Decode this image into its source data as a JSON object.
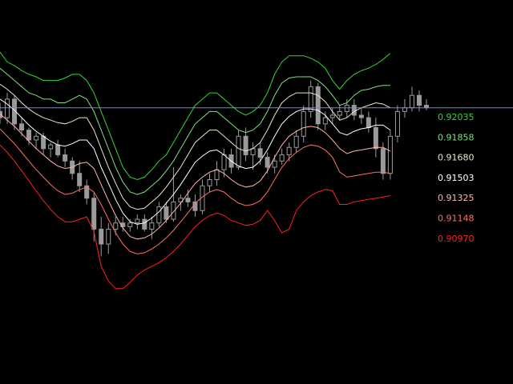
{
  "chart_data": {
    "type": "line",
    "background": "#000000",
    "candle_color": "#9a9a9a",
    "price_line": {
      "value": 0.9168,
      "color": "#8090a8"
    },
    "ylim": [
      0.8945,
      0.9255
    ],
    "x_count": 60,
    "band_levels": [
      {
        "label": "0.92035",
        "color": "#33d633"
      },
      {
        "label": "0.91858",
        "color": "#80e080"
      },
      {
        "label": "0.91680",
        "color": "#e8e8c8"
      },
      {
        "label": "0.91503",
        "color": "#ffffff"
      },
      {
        "label": "0.91325",
        "color": "#ffb8a8"
      },
      {
        "label": "0.91148",
        "color": "#ff7060"
      },
      {
        "label": "0.90970",
        "color": "#ff2020"
      }
    ],
    "series": [
      {
        "color": "#33d633",
        "values": [
          0.9213,
          0.9205,
          0.9202,
          0.9198,
          0.9195,
          0.9193,
          0.919,
          0.919,
          0.919,
          0.9192,
          0.9195,
          0.9195,
          0.919,
          0.918,
          0.9165,
          0.915,
          0.9135,
          0.912,
          0.9112,
          0.911,
          0.9112,
          0.9118,
          0.9125,
          0.913,
          0.914,
          0.915,
          0.916,
          0.917,
          0.9175,
          0.918,
          0.918,
          0.9175,
          0.917,
          0.9165,
          0.9162,
          0.9165,
          0.917,
          0.918,
          0.9195,
          0.9205,
          0.921,
          0.921,
          0.921,
          0.9208,
          0.9205,
          0.92,
          0.919,
          0.9183,
          0.919,
          0.9195,
          0.9198,
          0.92,
          0.9203,
          0.9207,
          0.9212
        ]
      },
      {
        "color": "#80e080",
        "values": [
          0.92,
          0.9195,
          0.919,
          0.9185,
          0.918,
          0.9178,
          0.9175,
          0.9175,
          0.9172,
          0.9172,
          0.9175,
          0.9178,
          0.9175,
          0.9165,
          0.915,
          0.9135,
          0.912,
          0.9108,
          0.91,
          0.9098,
          0.91,
          0.9105,
          0.911,
          0.9117,
          0.9125,
          0.9135,
          0.9145,
          0.9155,
          0.916,
          0.9165,
          0.9165,
          0.916,
          0.9155,
          0.915,
          0.9148,
          0.915,
          0.9155,
          0.9165,
          0.9178,
          0.9188,
          0.9192,
          0.9193,
          0.9193,
          0.9193,
          0.919,
          0.9185,
          0.9178,
          0.917,
          0.9172,
          0.9178,
          0.9182,
          0.9183,
          0.9185,
          0.9186,
          0.9186
        ]
      },
      {
        "color": "#e8e8c8",
        "values": [
          0.9187,
          0.9183,
          0.9178,
          0.9172,
          0.9167,
          0.9163,
          0.916,
          0.9158,
          0.9156,
          0.9155,
          0.9157,
          0.916,
          0.916,
          0.915,
          0.9135,
          0.912,
          0.9107,
          0.9095,
          0.9088,
          0.9086,
          0.9087,
          0.9092,
          0.9097,
          0.9104,
          0.9112,
          0.912,
          0.913,
          0.914,
          0.9145,
          0.915,
          0.915,
          0.9145,
          0.914,
          0.9135,
          0.9133,
          0.9135,
          0.914,
          0.915,
          0.9162,
          0.9172,
          0.9177,
          0.918,
          0.918,
          0.918,
          0.9178,
          0.9173,
          0.9165,
          0.9158,
          0.916,
          0.9165,
          0.9168,
          0.917,
          0.9172,
          0.9171,
          0.9168
        ]
      },
      {
        "color": "#ffffff",
        "values": [
          0.9175,
          0.9171,
          0.9166,
          0.916,
          0.9154,
          0.9149,
          0.9145,
          0.9141,
          0.9138,
          0.9137,
          0.9139,
          0.9142,
          0.9142,
          0.9135,
          0.912,
          0.9107,
          0.9094,
          0.9083,
          0.9076,
          0.9074,
          0.9075,
          0.9079,
          0.9084,
          0.9091,
          0.9098,
          0.9106,
          0.9115,
          0.9124,
          0.9129,
          0.9133,
          0.9134,
          0.913,
          0.9125,
          0.9121,
          0.9119,
          0.912,
          0.9125,
          0.9134,
          0.9145,
          0.9155,
          0.9161,
          0.9165,
          0.9167,
          0.9167,
          0.9166,
          0.9162,
          0.9155,
          0.9148,
          0.9146,
          0.9149,
          0.9151,
          0.9152,
          0.9154,
          0.9154,
          0.915
        ]
      },
      {
        "color": "#ffb8a8",
        "values": [
          0.9163,
          0.9158,
          0.9153,
          0.9147,
          0.9141,
          0.9135,
          0.913,
          0.9125,
          0.9121,
          0.9119,
          0.912,
          0.9123,
          0.9124,
          0.9119,
          0.9106,
          0.9093,
          0.9081,
          0.9071,
          0.9064,
          0.9062,
          0.9063,
          0.9066,
          0.9071,
          0.9077,
          0.9084,
          0.9091,
          0.9099,
          0.9107,
          0.9112,
          0.9116,
          0.9118,
          0.9115,
          0.911,
          0.9106,
          0.9104,
          0.9105,
          0.9109,
          0.9117,
          0.9128,
          0.9138,
          0.9145,
          0.9149,
          0.9152,
          0.9153,
          0.9152,
          0.9148,
          0.9142,
          0.9135,
          0.9131,
          0.9133,
          0.9134,
          0.9135,
          0.9136,
          0.9136,
          0.9133
        ]
      },
      {
        "color": "#ff7060",
        "values": [
          0.9151,
          0.9145,
          0.9139,
          0.9132,
          0.9125,
          0.9118,
          0.9112,
          0.9106,
          0.9101,
          0.9098,
          0.9099,
          0.9102,
          0.9104,
          0.91,
          0.909,
          0.9078,
          0.9067,
          0.9058,
          0.9052,
          0.905,
          0.9051,
          0.9054,
          0.9058,
          0.9063,
          0.9069,
          0.9076,
          0.9083,
          0.9091,
          0.9096,
          0.91,
          0.9102,
          0.91,
          0.9095,
          0.9091,
          0.9089,
          0.909,
          0.9093,
          0.91,
          0.911,
          0.912,
          0.9127,
          0.9132,
          0.9136,
          0.9138,
          0.9137,
          0.9134,
          0.9128,
          0.9116,
          0.9112,
          0.9113,
          0.9114,
          0.9115,
          0.9116,
          0.9116,
          0.9115
        ]
      },
      {
        "color": "#ff2020",
        "values": [
          0.9138,
          0.9132,
          0.9125,
          0.9117,
          0.9109,
          0.9101,
          0.9093,
          0.9086,
          0.908,
          0.9076,
          0.9076,
          0.9078,
          0.908,
          0.9068,
          0.904,
          0.9028,
          0.9022,
          0.9022,
          0.9027,
          0.9033,
          0.9037,
          0.904,
          0.9043,
          0.9047,
          0.9052,
          0.9058,
          0.9065,
          0.9072,
          0.9077,
          0.9081,
          0.9083,
          0.9081,
          0.9077,
          0.9075,
          0.9073,
          0.9074,
          0.9077,
          0.9085,
          0.9077,
          0.9067,
          0.907,
          0.9085,
          0.9092,
          0.9097,
          0.91,
          0.9102,
          0.9101,
          0.909,
          0.909,
          0.9092,
          0.9093,
          0.9094,
          0.9095,
          0.9096,
          0.9097
        ]
      }
    ],
    "candles": [
      [
        0.9165,
        0.9172,
        0.9155,
        0.916
      ],
      [
        0.916,
        0.918,
        0.9155,
        0.9175
      ],
      [
        0.9175,
        0.9178,
        0.915,
        0.9155
      ],
      [
        0.9155,
        0.916,
        0.9145,
        0.915
      ],
      [
        0.915,
        0.9152,
        0.9138,
        0.9142
      ],
      [
        0.9142,
        0.9148,
        0.9135,
        0.9145
      ],
      [
        0.9145,
        0.9148,
        0.913,
        0.9135
      ],
      [
        0.9135,
        0.914,
        0.9128,
        0.9138
      ],
      [
        0.9138,
        0.9142,
        0.9128,
        0.913
      ],
      [
        0.913,
        0.9135,
        0.912,
        0.9125
      ],
      [
        0.9125,
        0.9128,
        0.911,
        0.9115
      ],
      [
        0.9115,
        0.9125,
        0.91,
        0.9105
      ],
      [
        0.9105,
        0.911,
        0.909,
        0.9095
      ],
      [
        0.9095,
        0.91,
        0.906,
        0.907
      ],
      [
        0.907,
        0.908,
        0.9048,
        0.9058
      ],
      [
        0.9058,
        0.9075,
        0.905,
        0.907
      ],
      [
        0.907,
        0.908,
        0.9065,
        0.9075
      ],
      [
        0.9075,
        0.908,
        0.9068,
        0.9072
      ],
      [
        0.9072,
        0.9078,
        0.9068,
        0.9075
      ],
      [
        0.9075,
        0.9082,
        0.907,
        0.9078
      ],
      [
        0.9078,
        0.9082,
        0.9068,
        0.907
      ],
      [
        0.907,
        0.908,
        0.9062,
        0.9075
      ],
      [
        0.9075,
        0.9092,
        0.9072,
        0.9088
      ],
      [
        0.9088,
        0.9092,
        0.9075,
        0.9078
      ],
      [
        0.9078,
        0.912,
        0.9076,
        0.9092
      ],
      [
        0.9092,
        0.9098,
        0.9085,
        0.9095
      ],
      [
        0.9095,
        0.9102,
        0.9088,
        0.9092
      ],
      [
        0.9092,
        0.9098,
        0.908,
        0.9085
      ],
      [
        0.9085,
        0.911,
        0.9082,
        0.9105
      ],
      [
        0.9105,
        0.9115,
        0.91,
        0.911
      ],
      [
        0.911,
        0.9125,
        0.9105,
        0.9118
      ],
      [
        0.9118,
        0.9135,
        0.9112,
        0.913
      ],
      [
        0.913,
        0.9135,
        0.9115,
        0.912
      ],
      [
        0.912,
        0.915,
        0.9118,
        0.9145
      ],
      [
        0.9145,
        0.9152,
        0.9125,
        0.913
      ],
      [
        0.913,
        0.914,
        0.9118,
        0.9135
      ],
      [
        0.9135,
        0.914,
        0.9122,
        0.9128
      ],
      [
        0.9128,
        0.9132,
        0.9115,
        0.912
      ],
      [
        0.912,
        0.913,
        0.9115,
        0.9125
      ],
      [
        0.9125,
        0.9135,
        0.9122,
        0.913
      ],
      [
        0.913,
        0.914,
        0.9125,
        0.9136
      ],
      [
        0.9136,
        0.915,
        0.9132,
        0.9145
      ],
      [
        0.9145,
        0.917,
        0.914,
        0.9165
      ],
      [
        0.9165,
        0.919,
        0.916,
        0.9185
      ],
      [
        0.9185,
        0.9188,
        0.915,
        0.9155
      ],
      [
        0.9155,
        0.9165,
        0.915,
        0.916
      ],
      [
        0.916,
        0.9168,
        0.9155,
        0.9162
      ],
      [
        0.9162,
        0.917,
        0.9158,
        0.9165
      ],
      [
        0.9165,
        0.9175,
        0.916,
        0.917
      ],
      [
        0.917,
        0.9175,
        0.9158,
        0.9162
      ],
      [
        0.9162,
        0.9168,
        0.9155,
        0.916
      ],
      [
        0.916,
        0.9165,
        0.9148,
        0.9152
      ],
      [
        0.9152,
        0.916,
        0.9128,
        0.9135
      ],
      [
        0.9135,
        0.914,
        0.911,
        0.9115
      ],
      [
        0.9115,
        0.915,
        0.911,
        0.9145
      ],
      [
        0.9145,
        0.917,
        0.914,
        0.9165
      ],
      [
        0.9165,
        0.9175,
        0.916,
        0.9168
      ],
      [
        0.9168,
        0.9185,
        0.9165,
        0.9178
      ],
      [
        0.9178,
        0.9182,
        0.9165,
        0.917
      ],
      [
        0.917,
        0.9175,
        0.9166,
        0.9168
      ]
    ]
  }
}
